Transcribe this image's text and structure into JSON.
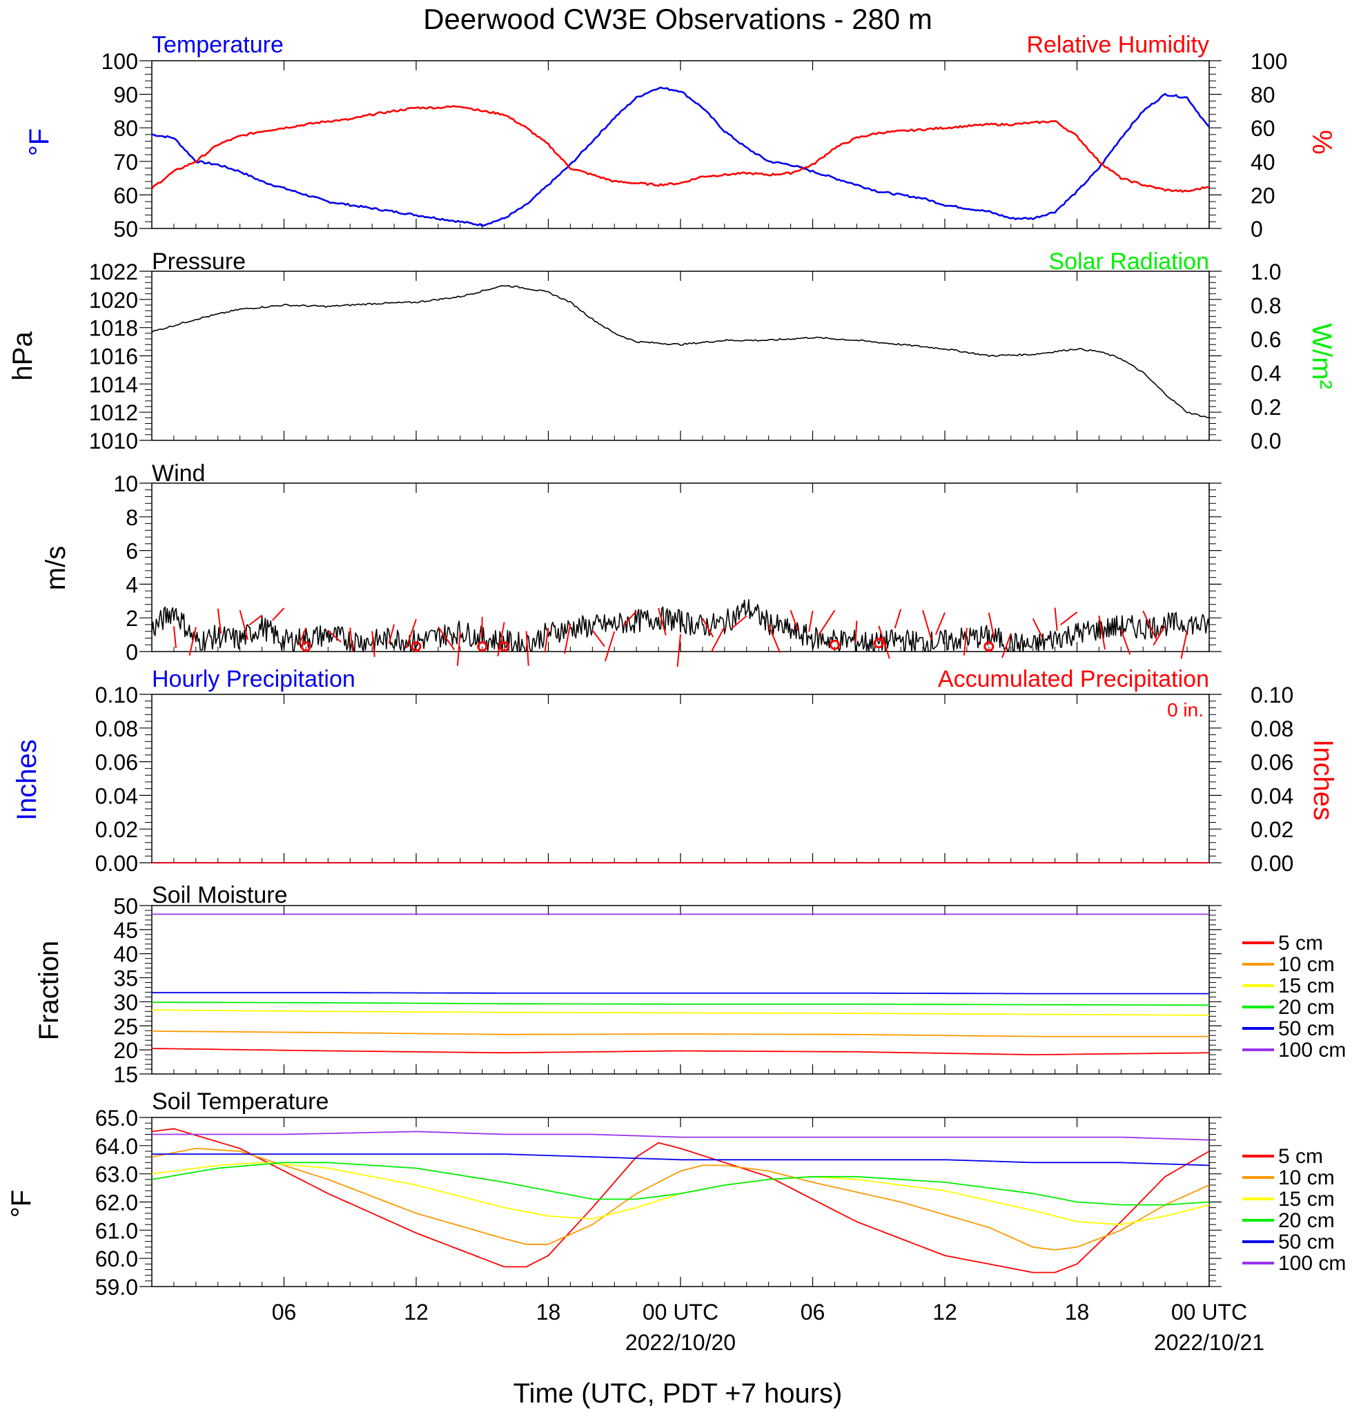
{
  "title": "Deerwood CW3E Observations - 280 m",
  "x_axis": {
    "label": "Time (UTC, PDT +7 hours)",
    "ticks": [
      {
        "hour": 6,
        "label": "06",
        "date": ""
      },
      {
        "hour": 12,
        "label": "12",
        "date": ""
      },
      {
        "hour": 18,
        "label": "18",
        "date": ""
      },
      {
        "hour": 24,
        "label": "00 UTC",
        "date": "2022/10/20"
      },
      {
        "hour": 30,
        "label": "06",
        "date": ""
      },
      {
        "hour": 36,
        "label": "12",
        "date": ""
      },
      {
        "hour": 42,
        "label": "18",
        "date": ""
      },
      {
        "hour": 48,
        "label": "00 UTC",
        "date": "2022/10/21"
      }
    ]
  },
  "soil_legend": [
    {
      "label": "5 cm",
      "color": "#ff0000"
    },
    {
      "label": "10 cm",
      "color": "#ff9900"
    },
    {
      "label": "15 cm",
      "color": "#ffff00"
    },
    {
      "label": "20 cm",
      "color": "#00ee00"
    },
    {
      "label": "50 cm",
      "color": "#0000ee"
    },
    {
      "label": "100 cm",
      "color": "#9933ee"
    }
  ],
  "panels": {
    "temp_rh": {
      "left_title": "Temperature",
      "right_title": "Relative Humidity",
      "left_unit": "°F",
      "right_unit": "%",
      "left_ticks": [
        "50",
        "60",
        "70",
        "80",
        "90",
        "100"
      ],
      "right_ticks": [
        "0",
        "20",
        "40",
        "60",
        "80",
        "100"
      ]
    },
    "pressure": {
      "left_title": "Pressure",
      "right_title": "Solar Radiation",
      "left_unit": "hPa",
      "right_unit": "W/m²",
      "left_ticks": [
        "1010",
        "1012",
        "1014",
        "1016",
        "1018",
        "1020",
        "1022"
      ],
      "right_ticks": [
        "0.0",
        "0.2",
        "0.4",
        "0.6",
        "0.8",
        "1.0"
      ]
    },
    "wind": {
      "left_title": "Wind",
      "left_unit": "m/s",
      "left_ticks": [
        "0",
        "2",
        "4",
        "6",
        "8",
        "10"
      ]
    },
    "precip": {
      "left_title": "Hourly Precipitation",
      "right_title": "Accumulated Precipitation",
      "accum_note": "0 in.",
      "left_unit": "Inches",
      "right_unit": "Inches",
      "left_ticks": [
        "0.00",
        "0.02",
        "0.04",
        "0.06",
        "0.08",
        "0.10"
      ],
      "right_ticks": [
        "0.00",
        "0.02",
        "0.04",
        "0.06",
        "0.08",
        "0.10"
      ]
    },
    "soil_moisture": {
      "left_title": "Soil Moisture",
      "left_unit": "Fraction",
      "left_ticks": [
        "15",
        "20",
        "25",
        "30",
        "35",
        "40",
        "45",
        "50"
      ]
    },
    "soil_temp": {
      "left_title": "Soil Temperature",
      "left_unit": "°F",
      "left_ticks": [
        "59.0",
        "60.0",
        "61.0",
        "62.0",
        "63.0",
        "64.0",
        "65.0"
      ]
    }
  },
  "chart_data": [
    {
      "type": "line",
      "x_unit": "hours UTC from 2022/10/19 00:00",
      "xlim": [
        0,
        48
      ],
      "series": [
        {
          "name": "Temperature",
          "color": "#0000ee",
          "axis": "left",
          "ylim": [
            50,
            100
          ],
          "x": [
            0,
            1,
            2,
            3,
            4,
            5,
            6,
            7,
            8,
            9,
            10,
            11,
            12,
            13,
            14,
            15,
            16,
            17,
            18,
            19,
            20,
            21,
            22,
            23,
            24,
            25,
            26,
            27,
            28,
            29,
            30,
            31,
            32,
            33,
            34,
            35,
            36,
            37,
            38,
            39,
            40,
            41,
            42,
            43,
            44,
            45,
            46,
            47,
            48
          ],
          "y": [
            78,
            77,
            70,
            69,
            67,
            64,
            62,
            60,
            58,
            57,
            56,
            55,
            54,
            53,
            52,
            51,
            53,
            57,
            63,
            69,
            76,
            83,
            89,
            92,
            91,
            86,
            79,
            74,
            70,
            69,
            67,
            65,
            63,
            61,
            60,
            59,
            57,
            56,
            55,
            53,
            53,
            55,
            61,
            68,
            77,
            85,
            90,
            89,
            80
          ]
        },
        {
          "name": "Relative Humidity",
          "color": "#ff0000",
          "axis": "right",
          "ylim": [
            0,
            100
          ],
          "x": [
            0,
            1,
            2,
            3,
            4,
            5,
            6,
            7,
            8,
            9,
            10,
            11,
            12,
            13,
            14,
            15,
            16,
            17,
            18,
            19,
            20,
            21,
            22,
            23,
            24,
            25,
            26,
            27,
            28,
            29,
            30,
            31,
            32,
            33,
            34,
            35,
            36,
            37,
            38,
            39,
            40,
            41,
            42,
            43,
            44,
            45,
            46,
            47,
            48
          ],
          "y": [
            24,
            34,
            40,
            50,
            55,
            58,
            60,
            62,
            64,
            65,
            68,
            70,
            72,
            72,
            73,
            70,
            68,
            60,
            50,
            36,
            32,
            28,
            27,
            26,
            27,
            31,
            32,
            33,
            32,
            33,
            38,
            48,
            54,
            57,
            58,
            59,
            60,
            61,
            62,
            62,
            63,
            64,
            55,
            40,
            30,
            26,
            23,
            22,
            25
          ]
        }
      ]
    },
    {
      "type": "line",
      "x_unit": "hours UTC from 2022/10/19 00:00",
      "xlim": [
        0,
        48
      ],
      "series": [
        {
          "name": "Pressure",
          "color": "#000000",
          "axis": "left",
          "ylim": [
            1010,
            1022
          ],
          "x": [
            0,
            2,
            4,
            6,
            8,
            10,
            12,
            14,
            16,
            17,
            18,
            19,
            20,
            21,
            22,
            24,
            26,
            28,
            30,
            32,
            34,
            36,
            38,
            40,
            41,
            42,
            43,
            44,
            45,
            46,
            47,
            48
          ],
          "y": [
            1017.7,
            1018.6,
            1019.3,
            1019.6,
            1019.5,
            1019.7,
            1019.8,
            1020.2,
            1021,
            1020.8,
            1020.5,
            1019.8,
            1018.6,
            1017.6,
            1017.0,
            1016.8,
            1017.1,
            1017.1,
            1017.3,
            1017.1,
            1016.8,
            1016.5,
            1016.0,
            1016.1,
            1016.3,
            1016.5,
            1016.3,
            1015.8,
            1014.8,
            1013.3,
            1012.0,
            1011.6
          ]
        },
        {
          "name": "Solar Radiation",
          "color": "#00ee00",
          "axis": "right",
          "ylim": [
            0,
            1
          ],
          "x": [],
          "y": []
        }
      ]
    },
    {
      "type": "line",
      "x_unit": "hours UTC from 2022/10/19 00:00",
      "xlim": [
        0,
        48
      ],
      "ylim": [
        0,
        10
      ],
      "series": [
        {
          "name": "Wind",
          "color": "#000000",
          "x": [
            0,
            1,
            2,
            3,
            4,
            5,
            6,
            7,
            8,
            9,
            10,
            11,
            12,
            13,
            14,
            15,
            16,
            17,
            18,
            19,
            20,
            21,
            22,
            23,
            24,
            25,
            26,
            27,
            28,
            29,
            30,
            31,
            32,
            33,
            34,
            35,
            36,
            37,
            38,
            39,
            40,
            41,
            42,
            43,
            44,
            45,
            46,
            47,
            48
          ],
          "y": [
            1.3,
            2.5,
            0.6,
            0.9,
            0.7,
            1.5,
            0.6,
            0.8,
            1.0,
            0.7,
            0.6,
            0.8,
            0.6,
            0.9,
            1.2,
            0.8,
            0.6,
            0.4,
            1.1,
            1.4,
            1.5,
            1.6,
            1.8,
            2.0,
            1.8,
            1.5,
            1.7,
            2.6,
            1.7,
            1.2,
            0.8,
            0.7,
            0.6,
            0.5,
            0.7,
            0.5,
            0.6,
            0.8,
            0.9,
            0.5,
            0.3,
            0.8,
            1.1,
            1.3,
            1.5,
            1.4,
            1.6,
            1.7,
            1.5
          ]
        },
        {
          "name": "Calm",
          "color": "#ff0000",
          "x": [
            7,
            12,
            15,
            16,
            31,
            33,
            38
          ],
          "y": [
            0.3,
            0.3,
            0.3,
            0.3,
            0.4,
            0.5,
            0.3
          ]
        }
      ]
    },
    {
      "type": "line",
      "x_unit": "hours UTC from 2022/10/19 00:00",
      "xlim": [
        0,
        48
      ],
      "ylim": [
        0,
        0.1
      ],
      "series": [
        {
          "name": "Hourly Precipitation",
          "color": "#0000ee",
          "x": [
            0,
            48
          ],
          "y": [
            0,
            0
          ]
        },
        {
          "name": "Accumulated Precipitation",
          "color": "#ff0000",
          "x": [
            0,
            48
          ],
          "y": [
            0,
            0
          ]
        }
      ]
    },
    {
      "type": "line",
      "x_unit": "hours UTC from 2022/10/19 00:00",
      "xlim": [
        0,
        48
      ],
      "ylim": [
        15,
        50
      ],
      "series": [
        {
          "name": "5 cm",
          "color": "#ff0000",
          "x": [
            0,
            8,
            16,
            24,
            32,
            40,
            48
          ],
          "y": [
            20.3,
            19.8,
            19.4,
            19.8,
            19.6,
            19.0,
            19.4
          ]
        },
        {
          "name": "10 cm",
          "color": "#ff9900",
          "x": [
            0,
            8,
            16,
            24,
            32,
            40,
            48
          ],
          "y": [
            23.9,
            23.6,
            23.2,
            23.3,
            23.2,
            22.8,
            22.8
          ]
        },
        {
          "name": "15 cm",
          "color": "#ffff00",
          "x": [
            0,
            8,
            16,
            24,
            32,
            40,
            48
          ],
          "y": [
            28.3,
            28.0,
            27.8,
            27.7,
            27.6,
            27.4,
            27.2
          ]
        },
        {
          "name": "20 cm",
          "color": "#00ee00",
          "x": [
            0,
            8,
            16,
            24,
            32,
            40,
            48
          ],
          "y": [
            29.9,
            29.8,
            29.6,
            29.5,
            29.5,
            29.4,
            29.3
          ]
        },
        {
          "name": "50 cm",
          "color": "#0000ee",
          "x": [
            0,
            8,
            16,
            24,
            32,
            40,
            48
          ],
          "y": [
            31.9,
            31.9,
            31.8,
            31.8,
            31.8,
            31.7,
            31.7
          ]
        },
        {
          "name": "100 cm",
          "color": "#9933ee",
          "x": [
            0,
            8,
            16,
            24,
            32,
            40,
            48
          ],
          "y": [
            48.2,
            48.2,
            48.2,
            48.2,
            48.2,
            48.2,
            48.2
          ]
        }
      ]
    },
    {
      "type": "line",
      "x_unit": "hours UTC from 2022/10/19 00:00",
      "xlim": [
        0,
        48
      ],
      "ylim": [
        59,
        65
      ],
      "series": [
        {
          "name": "5 cm",
          "color": "#ff0000",
          "x": [
            0,
            1,
            4,
            8,
            12,
            16,
            17,
            18,
            20,
            22,
            23,
            24,
            26,
            28,
            30,
            32,
            36,
            40,
            41,
            42,
            44,
            46,
            48
          ],
          "y": [
            64.5,
            64.6,
            63.9,
            62.3,
            60.9,
            59.7,
            59.7,
            60.1,
            61.8,
            63.6,
            64.1,
            63.9,
            63.4,
            62.9,
            62.1,
            61.3,
            60.1,
            59.5,
            59.5,
            59.8,
            61.3,
            62.9,
            63.8
          ]
        },
        {
          "name": "10 cm",
          "color": "#ff9900",
          "x": [
            0,
            2,
            4,
            8,
            12,
            16,
            17,
            18,
            20,
            22,
            24,
            25,
            26,
            28,
            30,
            34,
            38,
            40,
            41,
            42,
            44,
            46,
            48
          ],
          "y": [
            63.6,
            63.9,
            63.8,
            62.8,
            61.6,
            60.7,
            60.5,
            60.5,
            61.2,
            62.3,
            63.1,
            63.3,
            63.3,
            63.1,
            62.7,
            62.0,
            61.1,
            60.4,
            60.3,
            60.4,
            61.0,
            61.9,
            62.6
          ]
        },
        {
          "name": "15 cm",
          "color": "#ffff00",
          "x": [
            0,
            3,
            5,
            8,
            12,
            16,
            18,
            20,
            22,
            24,
            26,
            28,
            30,
            32,
            36,
            40,
            42,
            44,
            46,
            48
          ],
          "y": [
            63.0,
            63.3,
            63.4,
            63.2,
            62.6,
            61.8,
            61.5,
            61.4,
            61.8,
            62.3,
            62.6,
            62.8,
            62.9,
            62.8,
            62.4,
            61.7,
            61.3,
            61.2,
            61.5,
            61.9
          ]
        },
        {
          "name": "20 cm",
          "color": "#00ee00",
          "x": [
            0,
            3,
            6,
            8,
            12,
            16,
            20,
            22,
            24,
            26,
            28,
            30,
            32,
            36,
            40,
            42,
            44,
            46,
            48
          ],
          "y": [
            62.8,
            63.2,
            63.4,
            63.4,
            63.2,
            62.7,
            62.1,
            62.1,
            62.3,
            62.6,
            62.8,
            62.9,
            62.9,
            62.7,
            62.3,
            62.0,
            61.9,
            61.9,
            62.0
          ]
        },
        {
          "name": "50 cm",
          "color": "#0000ee",
          "x": [
            0,
            6,
            12,
            16,
            20,
            24,
            28,
            32,
            36,
            40,
            44,
            48
          ],
          "y": [
            63.7,
            63.7,
            63.7,
            63.7,
            63.6,
            63.5,
            63.5,
            63.5,
            63.5,
            63.4,
            63.4,
            63.3
          ]
        },
        {
          "name": "100 cm",
          "color": "#9933ee",
          "x": [
            0,
            6,
            12,
            16,
            20,
            24,
            28,
            32,
            36,
            40,
            44,
            48
          ],
          "y": [
            64.4,
            64.4,
            64.5,
            64.4,
            64.4,
            64.3,
            64.3,
            64.3,
            64.3,
            64.3,
            64.3,
            64.2
          ]
        }
      ]
    }
  ]
}
